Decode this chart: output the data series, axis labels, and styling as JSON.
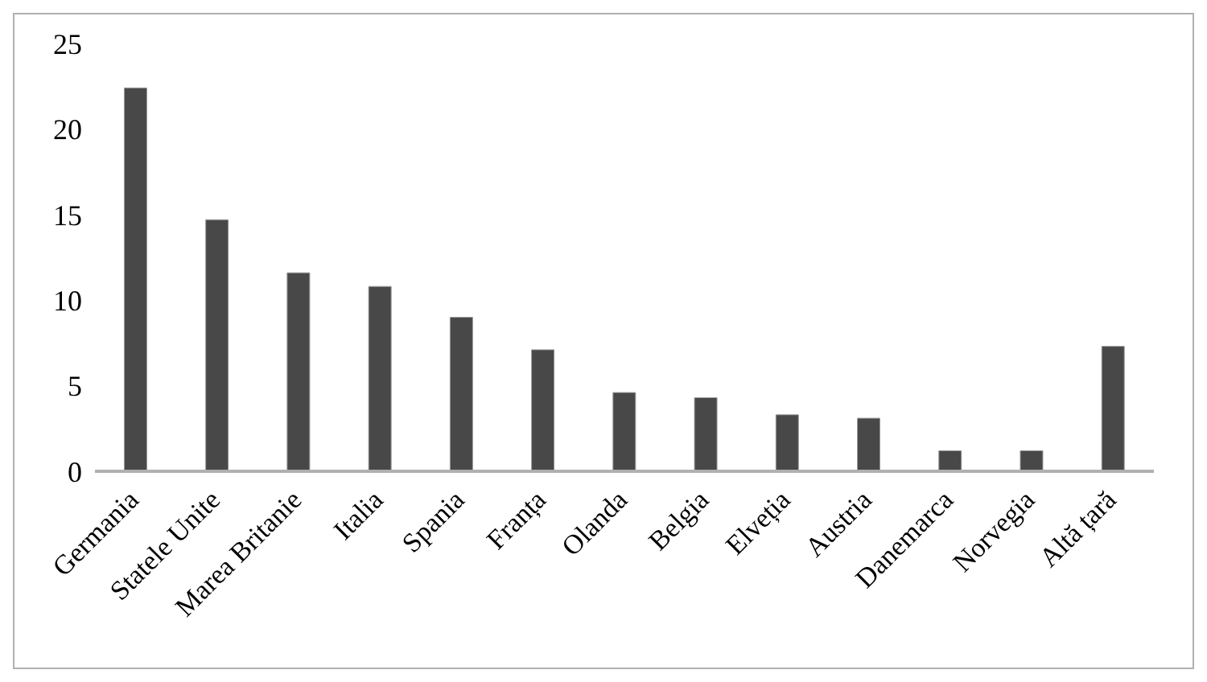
{
  "chart_data": {
    "type": "bar",
    "categories": [
      "Germania",
      "Statele Unite",
      "Marea Britanie",
      "Italia",
      "Spania",
      "Franța",
      "Olanda",
      "Belgia",
      "Elveția",
      "Austria",
      "Danemarca",
      "Norvegia",
      "Altă țară"
    ],
    "values": [
      22.4,
      14.7,
      11.6,
      10.8,
      9.0,
      7.1,
      4.6,
      4.3,
      3.3,
      3.1,
      1.2,
      1.2,
      7.3
    ],
    "color": "#484848",
    "ylim": [
      0,
      25
    ],
    "yticks": [
      0,
      5,
      10,
      15,
      20,
      25
    ],
    "grid": false,
    "legend": false
  }
}
